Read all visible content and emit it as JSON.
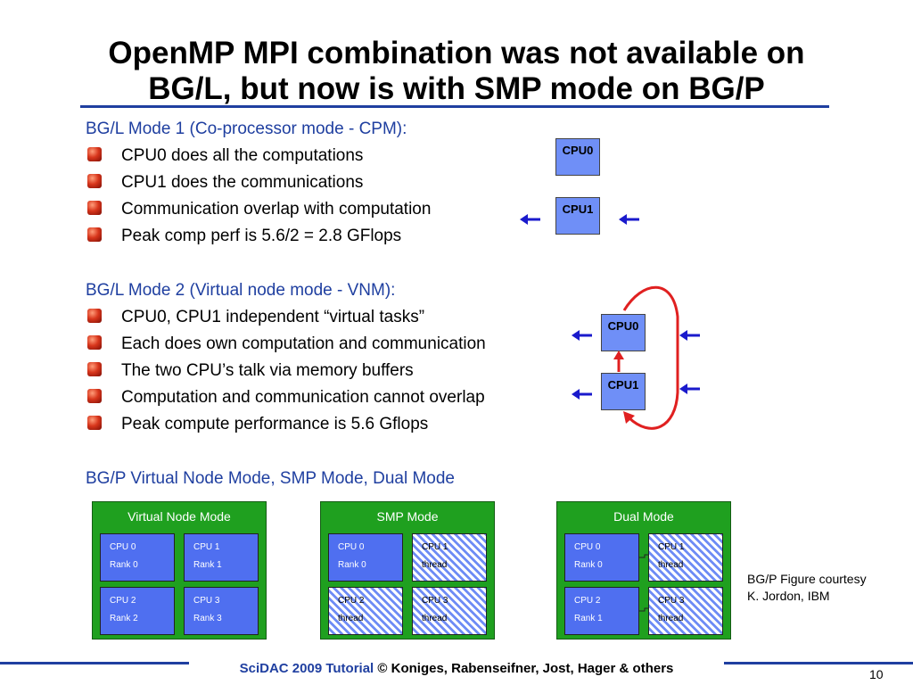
{
  "slide": {
    "title_line1": "OpenMP MPI combination was not available on",
    "title_line2": "BG/L, but now is with SMP mode on BG/P"
  },
  "mode1": {
    "heading": "BG/L Mode 1 (Co-processor mode - CPM):",
    "bullets": [
      "CPU0 does all the computations",
      "CPU1 does the communications",
      "Communication overlap with computation",
      "Peak comp perf is  5.6/2 = 2.8 GFlops"
    ],
    "cpu0_label": "CPU0",
    "cpu1_label": "CPU1"
  },
  "mode2": {
    "heading": "BG/L Mode 2 (Virtual node mode - VNM):",
    "bullets": [
      "CPU0, CPU1 independent “virtual tasks”",
      "Each does own computation and communication",
      "The two CPU’s talk via memory buffers",
      "Computation and communication cannot overlap",
      "Peak compute performance is 5.6 Gflops"
    ],
    "cpu0_label": "CPU0",
    "cpu1_label": "CPU1"
  },
  "bgp": {
    "heading": "BG/P Virtual Node Mode, SMP Mode, Dual Mode",
    "panels": [
      {
        "title": "Virtual Node Mode",
        "cells": [
          {
            "cpu": "CPU 0",
            "role": "Rank 0"
          },
          {
            "cpu": "CPU 1",
            "role": "Rank 1"
          },
          {
            "cpu": "CPU 2",
            "role": "Rank 2"
          },
          {
            "cpu": "CPU 3",
            "role": "Rank 3"
          }
        ]
      },
      {
        "title": "SMP Mode",
        "cells": [
          {
            "cpu": "CPU 0",
            "role": "Rank 0"
          },
          {
            "cpu": "CPU 1",
            "role": "thread"
          },
          {
            "cpu": "CPU 2",
            "role": "thread"
          },
          {
            "cpu": "CPU 3",
            "role": "thread"
          }
        ]
      },
      {
        "title": "Dual Mode",
        "cells": [
          {
            "cpu": "CPU 0",
            "role": "Rank 0"
          },
          {
            "cpu": "CPU 1",
            "role": "thread"
          },
          {
            "cpu": "CPU 2",
            "role": "Rank 1"
          },
          {
            "cpu": "CPU 3",
            "role": "thread"
          }
        ]
      }
    ],
    "courtesy_line1": "BG/P Figure courtesy",
    "courtesy_line2": "K. Jordon, IBM"
  },
  "footer": {
    "brand": "SciDAC 2009 Tutorial",
    "credits": " © Koniges, Rabenseifner, Jost, Hager & others",
    "page": "10"
  },
  "colors": {
    "accent_blue": "#1f3fa0",
    "cpu_blue": "#6f8ff7",
    "panel_green": "#1fa01f",
    "arrow_red": "#e02020",
    "arrow_blue": "#1a1acc"
  }
}
